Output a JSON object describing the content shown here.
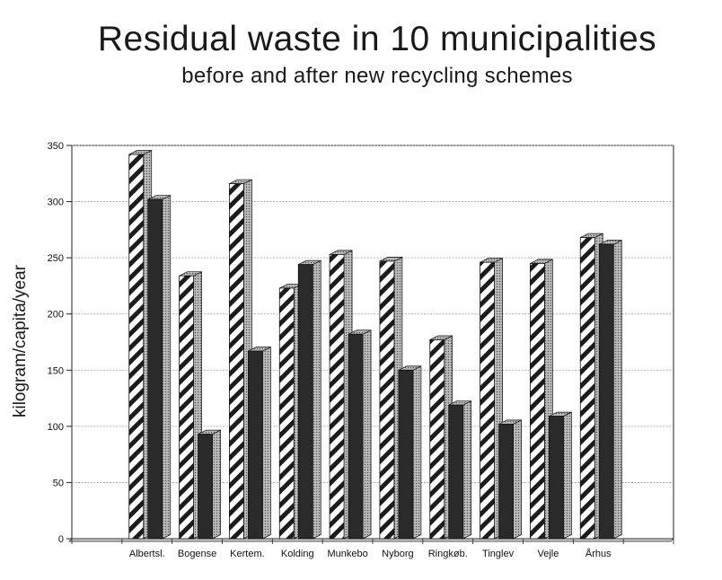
{
  "chart_data": {
    "type": "bar",
    "title": "Residual waste in 10 municipalities",
    "subtitle": "before and after new recycling schemes",
    "xlabel": "",
    "ylabel": "kilogram/capita/year",
    "ylim": [
      0,
      350
    ],
    "yticks": [
      0,
      50,
      100,
      150,
      200,
      250,
      300,
      350
    ],
    "grid": true,
    "categories": [
      "Albertsl.",
      "Bogense",
      "Kertem.",
      "Kolding",
      "Munkebo",
      "Nyborg",
      "Ringkøb.",
      "Tinglev",
      "Vejle",
      "Århus"
    ],
    "series": [
      {
        "name": "before",
        "values": [
          342,
          234,
          316,
          223,
          253,
          247,
          177,
          246,
          245,
          268
        ]
      },
      {
        "name": "after",
        "values": [
          302,
          93,
          167,
          244,
          182,
          150,
          119,
          102,
          109,
          262
        ]
      }
    ],
    "colors": {
      "before_fill": "#ffffff",
      "before_stripe": "#1c1c1c",
      "after_fill": "#2a2a2a",
      "grid": "#9a9a9a",
      "axis": "#222222"
    }
  }
}
